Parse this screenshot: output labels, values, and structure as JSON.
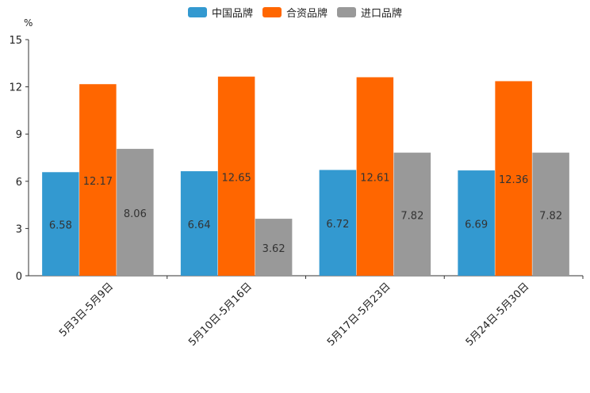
{
  "chart_data": {
    "type": "bar",
    "title": "",
    "unit_label": "%",
    "xlabel": "",
    "ylabel": "%",
    "ylim": [
      0,
      15
    ],
    "yticks": [
      0,
      3,
      6,
      9,
      12,
      15
    ],
    "grid": false,
    "legend_position": "top-center",
    "categories": [
      "5月3日-5月9日",
      "5月10日-5月16日",
      "5月17日-5月23日",
      "5月24日-5月30日"
    ],
    "series": [
      {
        "name": "中国品牌",
        "color": "#3399d0",
        "values": [
          6.58,
          6.64,
          6.72,
          6.69
        ],
        "labels": [
          "6.58",
          "6.64",
          "6.72",
          "6.69"
        ]
      },
      {
        "name": "合资品牌",
        "color": "#ff6600",
        "values": [
          12.17,
          12.65,
          12.61,
          12.36
        ],
        "labels": [
          "12.17",
          "12.65",
          "12.61",
          "12.36"
        ]
      },
      {
        "name": "进口品牌",
        "color": "#999999",
        "values": [
          8.06,
          3.62,
          7.82,
          7.82
        ],
        "labels": [
          "8.06",
          "3.62",
          "7.82",
          "7.82"
        ]
      }
    ]
  }
}
